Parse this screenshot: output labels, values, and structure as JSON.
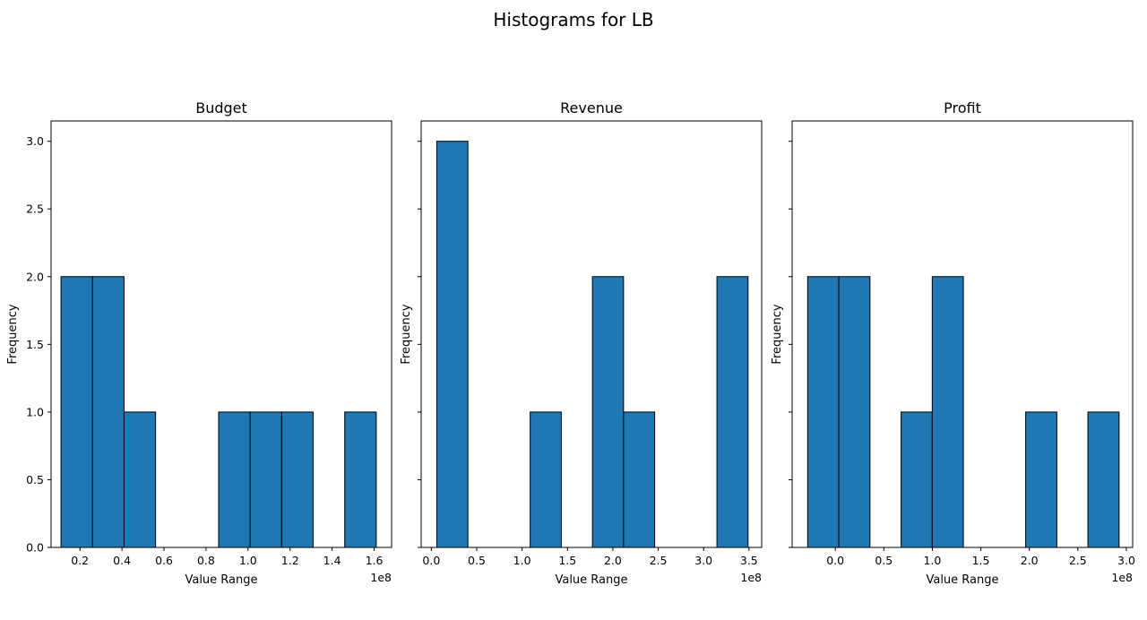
{
  "chart_data": {
    "suptitle": "Histograms for LB",
    "charts": [
      {
        "type": "histogram",
        "title": "Budget",
        "xlabel": "Value Range",
        "ylabel": "Frequency",
        "x_scale_label": "1e8",
        "xlim": [
          0.0627,
          1.683
        ],
        "ylim": [
          0,
          3.15
        ],
        "xticks": [
          0.2,
          0.4,
          0.6,
          0.8,
          1.0,
          1.2,
          1.4,
          1.6
        ],
        "xtick_labels": [
          "0.2",
          "0.4",
          "0.6",
          "0.8",
          "1.0",
          "1.2",
          "1.4",
          "1.6"
        ],
        "yticks": [
          0.0,
          0.5,
          1.0,
          1.5,
          2.0,
          2.5,
          3.0
        ],
        "ytick_labels": [
          "0.0",
          "0.5",
          "1.0",
          "1.5",
          "2.0",
          "2.5",
          "3.0"
        ],
        "bin_edges": [
          0.11,
          0.26,
          0.41,
          0.56,
          0.71,
          0.86,
          1.01,
          1.16,
          1.31,
          1.46,
          1.61
        ],
        "counts": [
          2,
          2,
          1,
          0,
          0,
          1,
          1,
          1,
          0,
          1
        ]
      },
      {
        "type": "histogram",
        "title": "Revenue",
        "xlabel": "Value Range",
        "ylabel": "Frequency",
        "x_scale_label": "1e8",
        "xlim": [
          -0.112,
          3.64
        ],
        "ylim": [
          0,
          3.15
        ],
        "xticks": [
          0.0,
          0.5,
          1.0,
          1.5,
          2.0,
          2.5,
          3.0,
          3.5
        ],
        "xtick_labels": [
          "0.0",
          "0.5",
          "1.0",
          "1.5",
          "2.0",
          "2.5",
          "3.0",
          "3.5"
        ],
        "yticks": [
          0.0,
          0.5,
          1.0,
          1.5,
          2.0,
          2.5,
          3.0
        ],
        "ytick_labels": [
          "",
          "",
          "",
          "",
          "",
          "",
          ""
        ],
        "bin_edges": [
          0.06,
          0.403,
          0.746,
          1.089,
          1.432,
          1.775,
          2.118,
          2.461,
          2.804,
          3.147,
          3.49
        ],
        "counts": [
          3,
          0,
          0,
          1,
          0,
          2,
          1,
          0,
          0,
          2
        ]
      },
      {
        "type": "histogram",
        "title": "Profit",
        "xlabel": "Value Range",
        "ylabel": "Frequency",
        "x_scale_label": "1e8",
        "xlim": [
          -0.445,
          3.065
        ],
        "ylim": [
          0,
          3.15
        ],
        "xticks": [
          0.0,
          0.5,
          1.0,
          1.5,
          2.0,
          2.5,
          3.0
        ],
        "xtick_labels": [
          "0.0",
          "0.5",
          "1.0",
          "1.5",
          "2.0",
          "2.5",
          "3.0"
        ],
        "yticks": [
          0.0,
          0.5,
          1.0,
          1.5,
          2.0,
          2.5,
          3.0
        ],
        "ytick_labels": [
          "",
          "",
          "",
          "",
          "",
          "",
          ""
        ],
        "bin_edges": [
          -0.285,
          0.036,
          0.357,
          0.678,
          0.999,
          1.32,
          1.641,
          1.962,
          2.283,
          2.604,
          2.925
        ],
        "counts": [
          2,
          2,
          0,
          1,
          2,
          0,
          0,
          1,
          0,
          1
        ]
      }
    ]
  },
  "style": {
    "bar_fill": "#1f77b4",
    "bar_edge": "#000000",
    "axis_color": "#000000",
    "background": "#ffffff"
  }
}
